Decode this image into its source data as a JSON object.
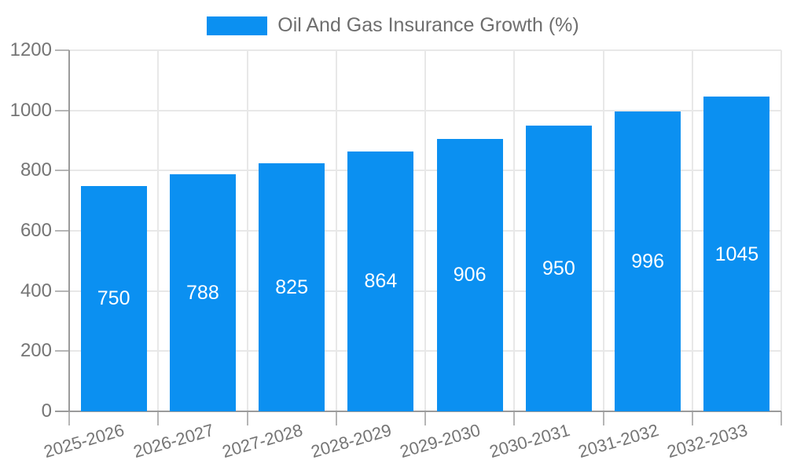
{
  "legend": {
    "label": "Oil And Gas Insurance Growth (%)"
  },
  "chart_data": {
    "type": "bar",
    "title": "Oil And Gas Insurance Growth (%)",
    "categories": [
      "2025-2026",
      "2026-2027",
      "2027-2028",
      "2028-2029",
      "2029-2030",
      "2030-2031",
      "2031-2032",
      "2032-2033"
    ],
    "values": [
      750,
      788,
      825,
      864,
      906,
      950,
      996,
      1045
    ],
    "value_labels": [
      "750",
      "788",
      "825",
      "864",
      "906",
      "950",
      "996",
      "1045"
    ],
    "xlabel": "",
    "ylabel": "",
    "ylim": [
      0,
      1200
    ],
    "yticks": [
      0,
      200,
      400,
      600,
      800,
      1000,
      1200
    ],
    "grid": true,
    "legend_position": "top-center",
    "bar_color": "#0B90F1",
    "value_label_color": "#FFFFFF",
    "grid_color": "#E8E8E8",
    "axis_color": "#9B9B9B",
    "tick_color": "#B6B6B6",
    "tick_label_color": "#757575",
    "legend_text_color": "#6E6E6E",
    "background_color": "#FFFFFF"
  }
}
